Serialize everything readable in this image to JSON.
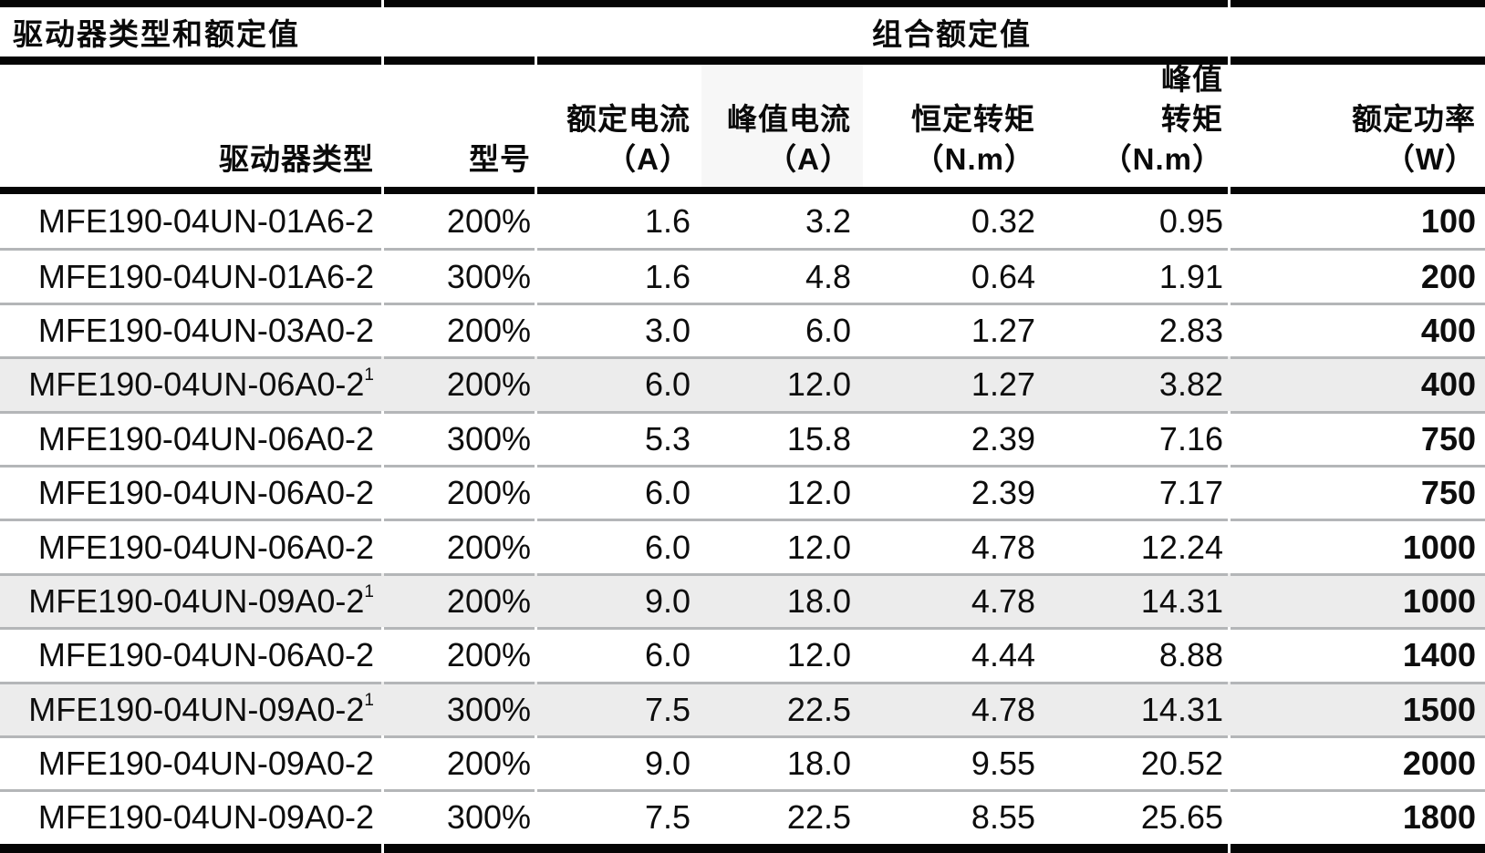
{
  "table": {
    "section_headers": {
      "left": "驱动器类型和额定值",
      "right": "组合额定值"
    },
    "columns": [
      {
        "id": "drive_type",
        "lines": [
          "驱动器类型"
        ]
      },
      {
        "id": "model",
        "lines": [
          "型号"
        ]
      },
      {
        "id": "rated_current",
        "lines": [
          "额定电流",
          "（A）"
        ]
      },
      {
        "id": "peak_current",
        "lines": [
          "峰值电流",
          "（A）"
        ],
        "shaded": true
      },
      {
        "id": "constant_torque",
        "lines": [
          "恒定转矩",
          "（N.m）"
        ]
      },
      {
        "id": "peak_torque",
        "lines": [
          "峰值",
          "转矩",
          "（N.m）"
        ]
      },
      {
        "id": "rated_power",
        "lines": [
          "额定功率",
          "（W）"
        ]
      }
    ],
    "rows": [
      {
        "drive_type": "MFE190-04UN-01A6-2",
        "sup": "",
        "model": "200%",
        "rated_current": "1.6",
        "peak_current": "3.2",
        "constant_torque": "0.32",
        "peak_torque": "0.95",
        "rated_power": "100",
        "shaded": false
      },
      {
        "drive_type": "MFE190-04UN-01A6-2",
        "sup": "",
        "model": "300%",
        "rated_current": "1.6",
        "peak_current": "4.8",
        "constant_torque": "0.64",
        "peak_torque": "1.91",
        "rated_power": "200",
        "shaded": false
      },
      {
        "drive_type": "MFE190-04UN-03A0-2",
        "sup": "",
        "model": "200%",
        "rated_current": "3.0",
        "peak_current": "6.0",
        "constant_torque": "1.27",
        "peak_torque": "2.83",
        "rated_power": "400",
        "shaded": false
      },
      {
        "drive_type": "MFE190-04UN-06A0-2",
        "sup": "1",
        "model": "200%",
        "rated_current": "6.0",
        "peak_current": "12.0",
        "constant_torque": "1.27",
        "peak_torque": "3.82",
        "rated_power": "400",
        "shaded": true
      },
      {
        "drive_type": "MFE190-04UN-06A0-2",
        "sup": "",
        "model": "300%",
        "rated_current": "5.3",
        "peak_current": "15.8",
        "constant_torque": "2.39",
        "peak_torque": "7.16",
        "rated_power": "750",
        "shaded": false
      },
      {
        "drive_type": "MFE190-04UN-06A0-2",
        "sup": "",
        "model": "200%",
        "rated_current": "6.0",
        "peak_current": "12.0",
        "constant_torque": "2.39",
        "peak_torque": "7.17",
        "rated_power": "750",
        "shaded": false
      },
      {
        "drive_type": "MFE190-04UN-06A0-2",
        "sup": "",
        "model": "200%",
        "rated_current": "6.0",
        "peak_current": "12.0",
        "constant_torque": "4.78",
        "peak_torque": "12.24",
        "rated_power": "1000",
        "shaded": false
      },
      {
        "drive_type": "MFE190-04UN-09A0-2",
        "sup": "1",
        "model": "200%",
        "rated_current": "9.0",
        "peak_current": "18.0",
        "constant_torque": "4.78",
        "peak_torque": "14.31",
        "rated_power": "1000",
        "shaded": true
      },
      {
        "drive_type": "MFE190-04UN-06A0-2",
        "sup": "",
        "model": "200%",
        "rated_current": "6.0",
        "peak_current": "12.0",
        "constant_torque": "4.44",
        "peak_torque": "8.88",
        "rated_power": "1400",
        "shaded": false
      },
      {
        "drive_type": "MFE190-04UN-09A0-2",
        "sup": "1",
        "model": "300%",
        "rated_current": "7.5",
        "peak_current": "22.5",
        "constant_torque": "4.78",
        "peak_torque": "14.31",
        "rated_power": "1500",
        "shaded": true
      },
      {
        "drive_type": "MFE190-04UN-09A0-2",
        "sup": "",
        "model": "200%",
        "rated_current": "9.0",
        "peak_current": "18.0",
        "constant_torque": "9.55",
        "peak_torque": "20.52",
        "rated_power": "2000",
        "shaded": false
      },
      {
        "drive_type": "MFE190-04UN-09A0-2",
        "sup": "",
        "model": "300%",
        "rated_current": "7.5",
        "peak_current": "22.5",
        "constant_torque": "8.55",
        "peak_torque": "25.65",
        "rated_power": "1800",
        "shaded": false
      }
    ]
  },
  "colors": {
    "rule_black": "#050505",
    "row_shade": "#ececec",
    "header_column_shade": "#f7f7f7",
    "divider_gray": "#b4b6b8",
    "text": "#0a0a0a"
  }
}
